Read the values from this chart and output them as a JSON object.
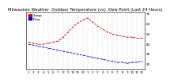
{
  "title": "Milwaukee Weather  Outdoor Temperature (vs)  Dew Point (Last 24 Hours)",
  "legend_temp": "Temp",
  "legend_dew": "Dew",
  "temp_vals": [
    42,
    41,
    40,
    40,
    41,
    42,
    43,
    47,
    52,
    57,
    61,
    64,
    66,
    62,
    58,
    55,
    52,
    50,
    49,
    48,
    47,
    47,
    46,
    46
  ],
  "dew_vals": [
    40,
    39,
    38,
    37,
    36,
    35,
    34,
    33,
    32,
    31,
    30,
    29,
    28,
    27,
    26,
    25,
    24,
    23,
    22,
    22,
    21,
    22,
    22,
    23
  ],
  "n_points": 24,
  "ylim": [
    15,
    72
  ],
  "yticks": [
    20,
    30,
    40,
    50,
    60,
    70
  ],
  "xlim": [
    -0.5,
    23.5
  ],
  "temp_color": "#cc0000",
  "dew_color": "#0000cc",
  "bg_color": "#ffffff",
  "grid_color": "#999999",
  "title_fontsize": 3.8,
  "tick_fontsize": 3.0,
  "legend_fontsize": 3.2,
  "linewidth": 0.6,
  "markersize": 1.0
}
